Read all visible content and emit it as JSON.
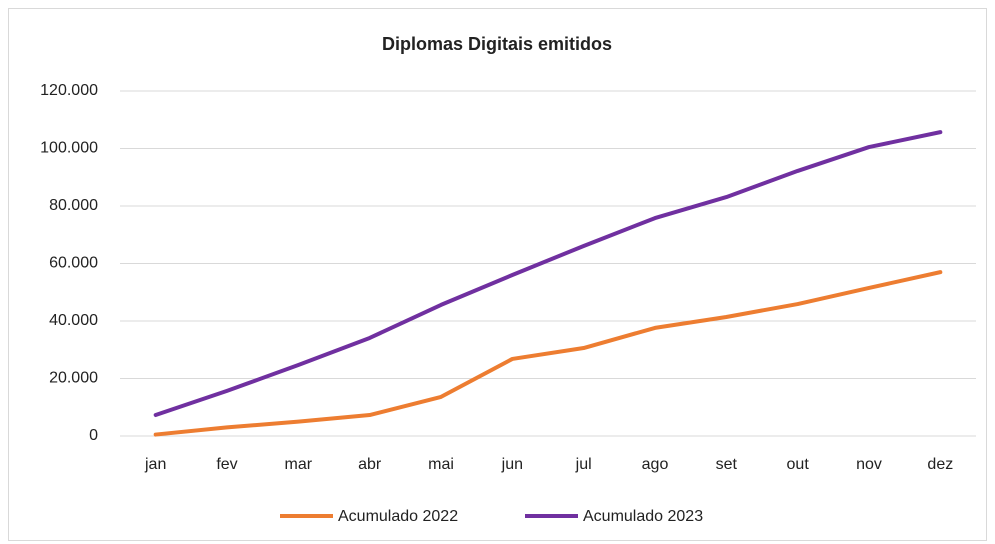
{
  "chart_data": {
    "type": "line",
    "title": "Diplomas Digitais emitidos",
    "categories": [
      "jan",
      "fev",
      "mar",
      "abr",
      "mai",
      "jun",
      "jul",
      "ago",
      "set",
      "out",
      "nov",
      "dez"
    ],
    "series": [
      {
        "name": "Acumulado 2022",
        "color": "#ed7d31",
        "values": [
          500,
          3000,
          5000,
          7300,
          13600,
          26800,
          30600,
          37600,
          41400,
          45900,
          51500,
          57000
        ]
      },
      {
        "name": "Acumulado 2023",
        "color": "#7030a0",
        "values": [
          7300,
          15700,
          24700,
          34100,
          45600,
          56000,
          66100,
          75800,
          83100,
          92200,
          100500,
          105700
        ]
      }
    ],
    "ylim": [
      0,
      120000
    ],
    "yticks": [
      0,
      {
        "value": 20000,
        "label": "20.000"
      },
      {
        "value": 40000,
        "label": "40.000"
      },
      {
        "value": 60000,
        "label": "60.000"
      },
      {
        "value": 80000,
        "label": "80.000"
      },
      {
        "value": 100000,
        "label": "100.000"
      },
      {
        "value": 120000,
        "label": "120.000"
      }
    ],
    "grid": true,
    "legend": "bottom"
  }
}
